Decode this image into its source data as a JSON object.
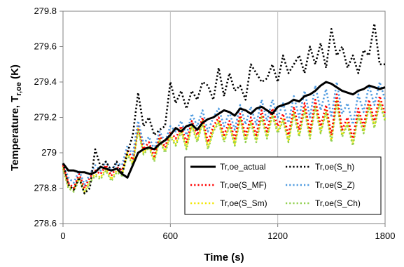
{
  "chart_data": {
    "type": "line",
    "xlabel": "Time (s)",
    "ylabel": "Temperature, T",
    "ylabel_sub": "r,oe",
    "ylabel_unit": " (K)",
    "xlim": [
      0,
      1800
    ],
    "ylim": [
      278.6,
      279.8
    ],
    "xticks": [
      0,
      600,
      1200,
      1800
    ],
    "xtick_labels": [
      "0",
      "600",
      "1200",
      "1800"
    ],
    "yticks": [
      278.6,
      278.8,
      279,
      279.2,
      279.4,
      279.6,
      279.8
    ],
    "ytick_labels": [
      "278.6",
      "278.8",
      "279",
      "279.2",
      "279.4",
      "279.6",
      "279.8"
    ],
    "grid": "vertical",
    "legend_position": "lower-right",
    "series": [
      {
        "name": "Tr,oe_actual",
        "color": "#000000",
        "style": "solid",
        "x": [
          0,
          30,
          60,
          90,
          120,
          150,
          180,
          210,
          240,
          270,
          300,
          330,
          360,
          390,
          420,
          450,
          480,
          510,
          540,
          570,
          600,
          630,
          660,
          690,
          720,
          750,
          780,
          810,
          840,
          870,
          900,
          930,
          960,
          990,
          1020,
          1050,
          1080,
          1110,
          1140,
          1170,
          1200,
          1230,
          1260,
          1290,
          1320,
          1350,
          1380,
          1410,
          1440,
          1470,
          1500,
          1530,
          1560,
          1590,
          1620,
          1650,
          1680,
          1710,
          1740,
          1770,
          1800
        ],
        "y": [
          278.94,
          278.9,
          278.9,
          278.89,
          278.89,
          278.88,
          278.89,
          278.92,
          278.91,
          278.9,
          278.91,
          278.88,
          278.86,
          278.93,
          279,
          279.02,
          279.03,
          279.02,
          279.05,
          279.07,
          279.1,
          279.14,
          279.12,
          279.15,
          279.16,
          279.13,
          279.17,
          279.19,
          279.2,
          279.22,
          279.24,
          279.23,
          279.21,
          279.25,
          279.24,
          279.22,
          279.25,
          279.26,
          279.24,
          279.22,
          279.26,
          279.27,
          279.28,
          279.3,
          279.29,
          279.32,
          279.33,
          279.35,
          279.38,
          279.4,
          279.39,
          279.37,
          279.35,
          279.34,
          279.33,
          279.35,
          279.36,
          279.38,
          279.37,
          279.36,
          279.37
        ]
      },
      {
        "name": "Tr,oe(S_h)",
        "color": "#000000",
        "style": "dotted",
        "x": [
          0,
          30,
          60,
          90,
          120,
          150,
          180,
          210,
          240,
          270,
          300,
          330,
          360,
          390,
          420,
          450,
          480,
          510,
          540,
          570,
          600,
          630,
          660,
          690,
          720,
          750,
          780,
          810,
          840,
          870,
          900,
          930,
          960,
          990,
          1020,
          1050,
          1080,
          1110,
          1140,
          1170,
          1200,
          1230,
          1260,
          1290,
          1320,
          1350,
          1380,
          1410,
          1440,
          1470,
          1500,
          1530,
          1560,
          1590,
          1620,
          1650,
          1680,
          1710,
          1740,
          1770,
          1800
        ],
        "y": [
          278.94,
          278.82,
          278.79,
          278.86,
          278.77,
          278.8,
          279.02,
          278.92,
          278.95,
          278.9,
          278.95,
          278.88,
          279,
          279.1,
          279.34,
          279.15,
          279.2,
          279.1,
          279.13,
          279.15,
          279.4,
          279.28,
          279.35,
          279.25,
          279.35,
          279.3,
          279.4,
          279.38,
          279.3,
          279.48,
          279.32,
          279.45,
          279.35,
          279.38,
          279.3,
          279.5,
          279.45,
          279.4,
          279.42,
          279.5,
          279.4,
          279.55,
          279.45,
          279.5,
          279.55,
          279.45,
          279.6,
          279.5,
          279.62,
          279.48,
          279.7,
          279.55,
          279.6,
          279.48,
          279.55,
          279.45,
          279.58,
          279.55,
          279.73,
          279.5,
          279.5
        ]
      },
      {
        "name": "Tr,oe(S_MF)",
        "color": "#ff0000",
        "style": "dotted",
        "x": [
          0,
          30,
          60,
          90,
          120,
          150,
          180,
          210,
          240,
          270,
          300,
          330,
          360,
          390,
          420,
          450,
          480,
          510,
          540,
          570,
          600,
          630,
          660,
          690,
          720,
          750,
          780,
          810,
          840,
          870,
          900,
          930,
          960,
          990,
          1020,
          1050,
          1080,
          1110,
          1140,
          1170,
          1200,
          1230,
          1260,
          1290,
          1320,
          1350,
          1380,
          1410,
          1440,
          1470,
          1500,
          1530,
          1560,
          1590,
          1620,
          1650,
          1680,
          1710,
          1740,
          1770,
          1800
        ],
        "y": [
          278.93,
          278.83,
          278.8,
          278.88,
          278.8,
          278.86,
          278.9,
          278.88,
          278.93,
          278.87,
          278.92,
          278.9,
          279.02,
          278.96,
          279.16,
          279.02,
          279.06,
          278.98,
          279.1,
          279.03,
          279.12,
          279.08,
          279.15,
          279.06,
          279.18,
          279.1,
          279.2,
          279.06,
          279.15,
          279.2,
          279.1,
          279.18,
          279.08,
          279.22,
          279.1,
          279.2,
          279.1,
          279.24,
          279.12,
          279.25,
          279.15,
          279.22,
          279.1,
          279.26,
          279.13,
          279.28,
          279.12,
          279.3,
          279.15,
          279.27,
          279.1,
          279.33,
          279.13,
          279.2,
          279.08,
          279.25,
          279.15,
          279.3,
          279.18,
          279.32,
          279.22
        ]
      },
      {
        "name": "Tr,oe(S_Z)",
        "color": "#4f9be0",
        "style": "dotted",
        "x": [
          0,
          30,
          60,
          90,
          120,
          150,
          180,
          210,
          240,
          270,
          300,
          330,
          360,
          390,
          420,
          450,
          480,
          510,
          540,
          570,
          600,
          630,
          660,
          690,
          720,
          750,
          780,
          810,
          840,
          870,
          900,
          930,
          960,
          990,
          1020,
          1050,
          1080,
          1110,
          1140,
          1170,
          1200,
          1230,
          1260,
          1290,
          1320,
          1350,
          1380,
          1410,
          1440,
          1470,
          1500,
          1530,
          1560,
          1590,
          1620,
          1650,
          1680,
          1710,
          1740,
          1770,
          1800
        ],
        "y": [
          278.94,
          278.86,
          278.83,
          278.9,
          278.82,
          278.88,
          278.93,
          278.9,
          278.95,
          278.9,
          278.94,
          278.93,
          279.04,
          278.99,
          279.18,
          279.05,
          279.09,
          279.02,
          279.12,
          279.06,
          279.15,
          279.12,
          279.18,
          279.1,
          279.22,
          279.15,
          279.24,
          279.12,
          279.2,
          279.25,
          279.15,
          279.23,
          279.13,
          279.27,
          279.16,
          279.26,
          279.16,
          279.3,
          279.18,
          279.3,
          279.2,
          279.28,
          279.17,
          279.32,
          279.2,
          279.35,
          279.2,
          279.38,
          279.24,
          279.36,
          279.2,
          279.4,
          279.22,
          279.28,
          279.16,
          279.33,
          279.23,
          279.38,
          279.27,
          279.4,
          279.3
        ]
      },
      {
        "name": "Tr,oe(S_Sm)",
        "color": "#f2e600",
        "style": "dotted",
        "x": [
          0,
          30,
          60,
          90,
          120,
          150,
          180,
          210,
          240,
          270,
          300,
          330,
          360,
          390,
          420,
          450,
          480,
          510,
          540,
          570,
          600,
          630,
          660,
          690,
          720,
          750,
          780,
          810,
          840,
          870,
          900,
          930,
          960,
          990,
          1020,
          1050,
          1080,
          1110,
          1140,
          1170,
          1200,
          1230,
          1260,
          1290,
          1320,
          1350,
          1380,
          1410,
          1440,
          1470,
          1500,
          1530,
          1560,
          1590,
          1620,
          1650,
          1680,
          1710,
          1740,
          1770,
          1800
        ],
        "y": [
          278.92,
          278.81,
          278.79,
          278.86,
          278.78,
          278.84,
          278.88,
          278.86,
          278.91,
          278.85,
          278.9,
          278.88,
          279,
          278.94,
          279.14,
          279,
          279.04,
          278.96,
          279.08,
          279.01,
          279.1,
          279.05,
          279.13,
          279.03,
          279.16,
          279.07,
          279.18,
          279.03,
          279.13,
          279.18,
          279.07,
          279.16,
          279.05,
          279.2,
          279.07,
          279.18,
          279.07,
          279.21,
          279.09,
          279.22,
          279.12,
          279.19,
          279.07,
          279.23,
          279.1,
          279.25,
          279.09,
          279.27,
          279.12,
          279.24,
          279.07,
          279.3,
          279.1,
          279.17,
          279.05,
          279.22,
          279.12,
          279.27,
          279.15,
          279.29,
          279.19
        ]
      },
      {
        "name": "Tr,oe(S_Ch)",
        "color": "#92d050",
        "style": "dotted",
        "x": [
          0,
          30,
          60,
          90,
          120,
          150,
          180,
          210,
          240,
          270,
          300,
          330,
          360,
          390,
          420,
          450,
          480,
          510,
          540,
          570,
          600,
          630,
          660,
          690,
          720,
          750,
          780,
          810,
          840,
          870,
          900,
          930,
          960,
          990,
          1020,
          1050,
          1080,
          1110,
          1140,
          1170,
          1200,
          1230,
          1260,
          1290,
          1320,
          1350,
          1380,
          1410,
          1440,
          1470,
          1500,
          1530,
          1560,
          1590,
          1620,
          1650,
          1680,
          1710,
          1740,
          1770,
          1800
        ],
        "y": [
          278.91,
          278.8,
          278.78,
          278.85,
          278.77,
          278.83,
          278.87,
          278.85,
          278.9,
          278.84,
          278.89,
          278.87,
          278.99,
          278.93,
          279.13,
          278.99,
          279.03,
          278.95,
          279.07,
          279,
          279.09,
          279.04,
          279.12,
          279.02,
          279.15,
          279.06,
          279.17,
          279.02,
          279.12,
          279.17,
          279.06,
          279.15,
          279.04,
          279.19,
          279.06,
          279.17,
          279.06,
          279.2,
          279.08,
          279.21,
          279.11,
          279.18,
          279.06,
          279.22,
          279.09,
          279.24,
          279.08,
          279.26,
          279.11,
          279.23,
          279.06,
          279.29,
          279.09,
          279.16,
          279.04,
          279.21,
          279.11,
          279.26,
          279.14,
          279.28,
          279.18
        ]
      }
    ]
  }
}
